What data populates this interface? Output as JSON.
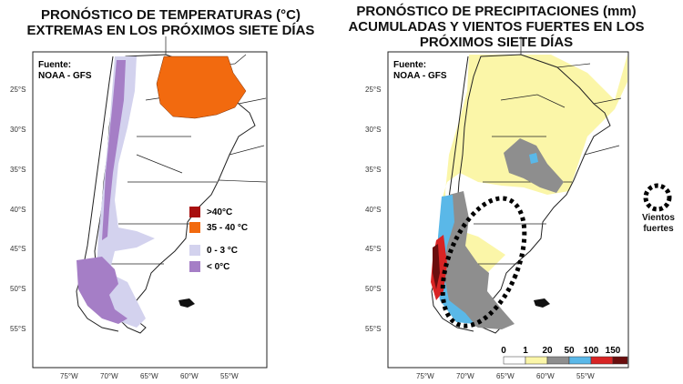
{
  "left_map": {
    "title_lines": [
      "PRONÓSTICO DE TEMPERATURAS (°C)",
      "EXTREMAS EN LOS PRÓXIMOS SIETE DÍAS"
    ],
    "source_lines": [
      "Fuente:",
      "NOAA - GFS"
    ],
    "legend": [
      {
        "label": ">40°C",
        "color": "#a80f0f"
      },
      {
        "label": "35 - 40 °C",
        "color": "#f26a0f"
      },
      {
        "label": "0 - 3 °C",
        "color": "#d3d2ee"
      },
      {
        "label": "< 0°C",
        "color": "#a57ec6"
      }
    ]
  },
  "right_map": {
    "title_lines": [
      "PRONÓSTICO DE PRECIPITACIONES (mm)",
      "ACUMULADAS Y VIENTOS FUERTES EN LOS",
      "PRÓXIMOS SIETE DÍAS"
    ],
    "source_lines": [
      "Fuente:",
      "NOAA - GFS"
    ],
    "scale_labels": [
      "0",
      "1",
      "20",
      "50",
      "100",
      "150"
    ],
    "scale_colors": [
      "#ffffff",
      "#fbf6a8",
      "#8e8e8e",
      "#5ab8e8",
      "#d82424",
      "#6a0e0e"
    ],
    "wind_legend_lines": [
      "Vientos",
      "fuertes"
    ]
  },
  "axes": {
    "lat_labels": [
      "25°S",
      "30°S",
      "35°S",
      "40°S",
      "45°S",
      "50°S",
      "55°S"
    ],
    "lon_labels": [
      "75°W",
      "70°W",
      "65°W",
      "60°W",
      "55°W"
    ]
  }
}
